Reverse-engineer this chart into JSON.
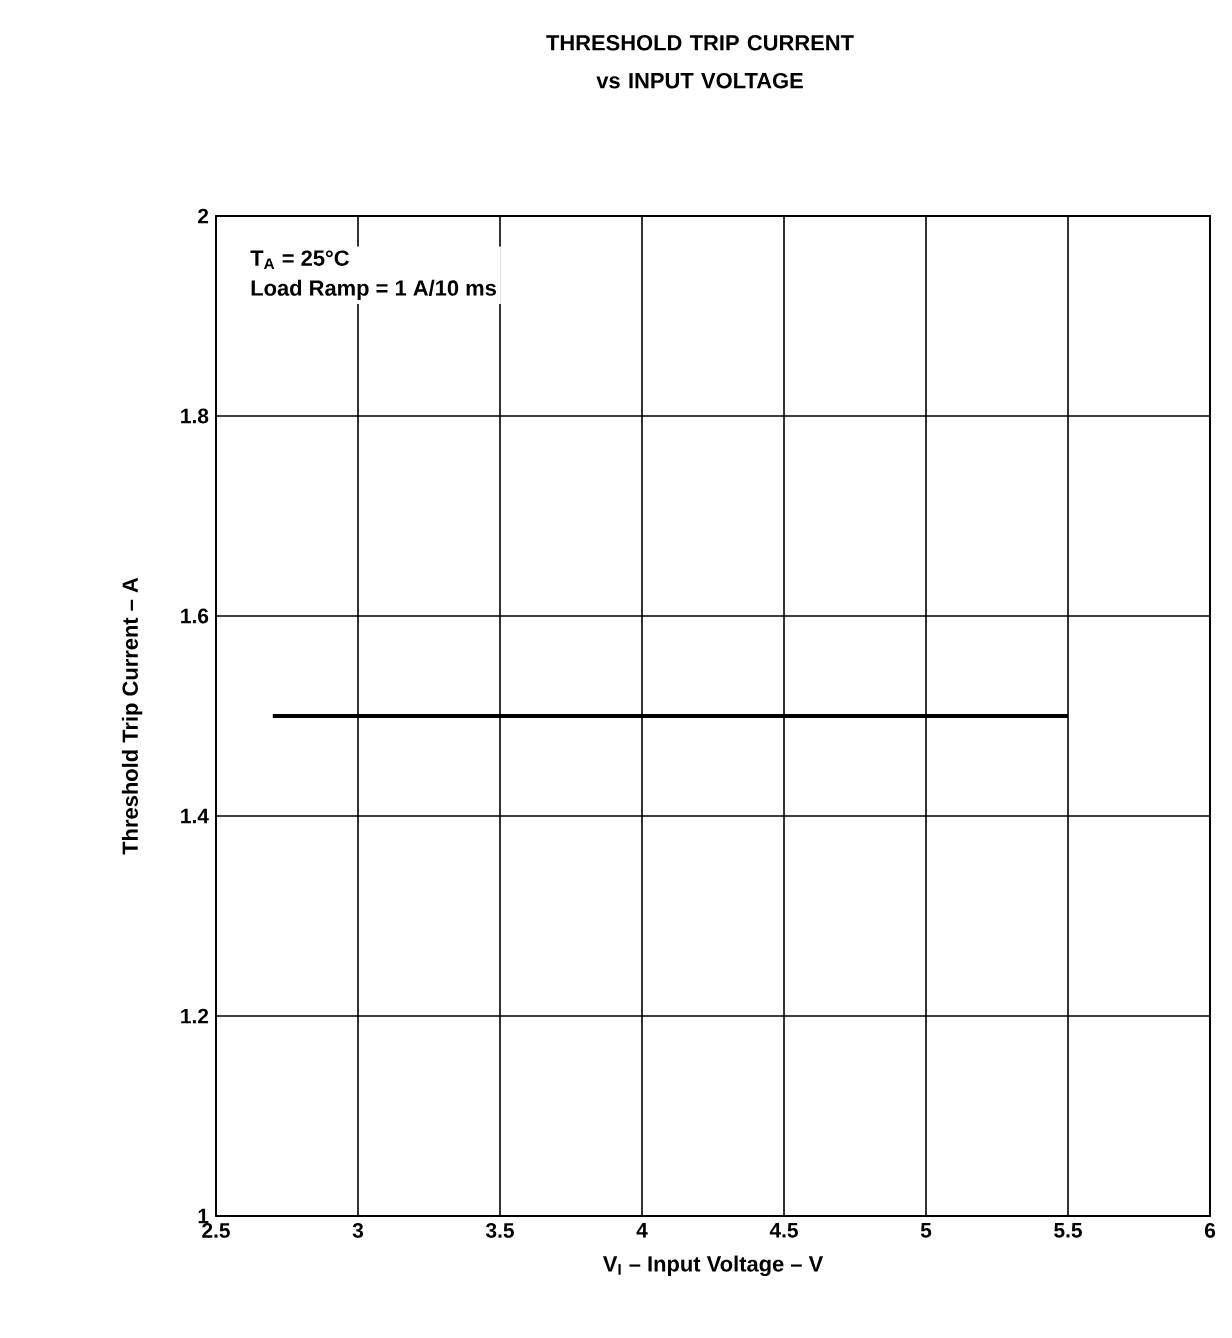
{
  "chart_data": {
    "type": "line",
    "title": "THRESHOLD TRIP CURRENT vs INPUT VOLTAGE",
    "xlabel": "V$_{I}$ – Input Voltage – V",
    "ylabel": "Threshold Trip Current – A",
    "annotations": [
      "T$_{A}$ = 25°C",
      "Load Ramp = 1 A/10 ms"
    ],
    "x": [
      2.7,
      5.5
    ],
    "series": [
      {
        "color": "#000000",
        "values": [
          1.5,
          1.5
        ]
      }
    ],
    "xlim": [
      2.5,
      6
    ],
    "xticks": [
      2.5,
      3,
      3.5,
      4,
      4.5,
      5,
      5.5,
      6
    ],
    "ylim": [
      1,
      2
    ],
    "yticks": [
      1,
      1.2,
      1.4,
      1.6,
      1.8,
      2
    ],
    "grid": true,
    "marker": "none",
    "line_style": "solid"
  }
}
